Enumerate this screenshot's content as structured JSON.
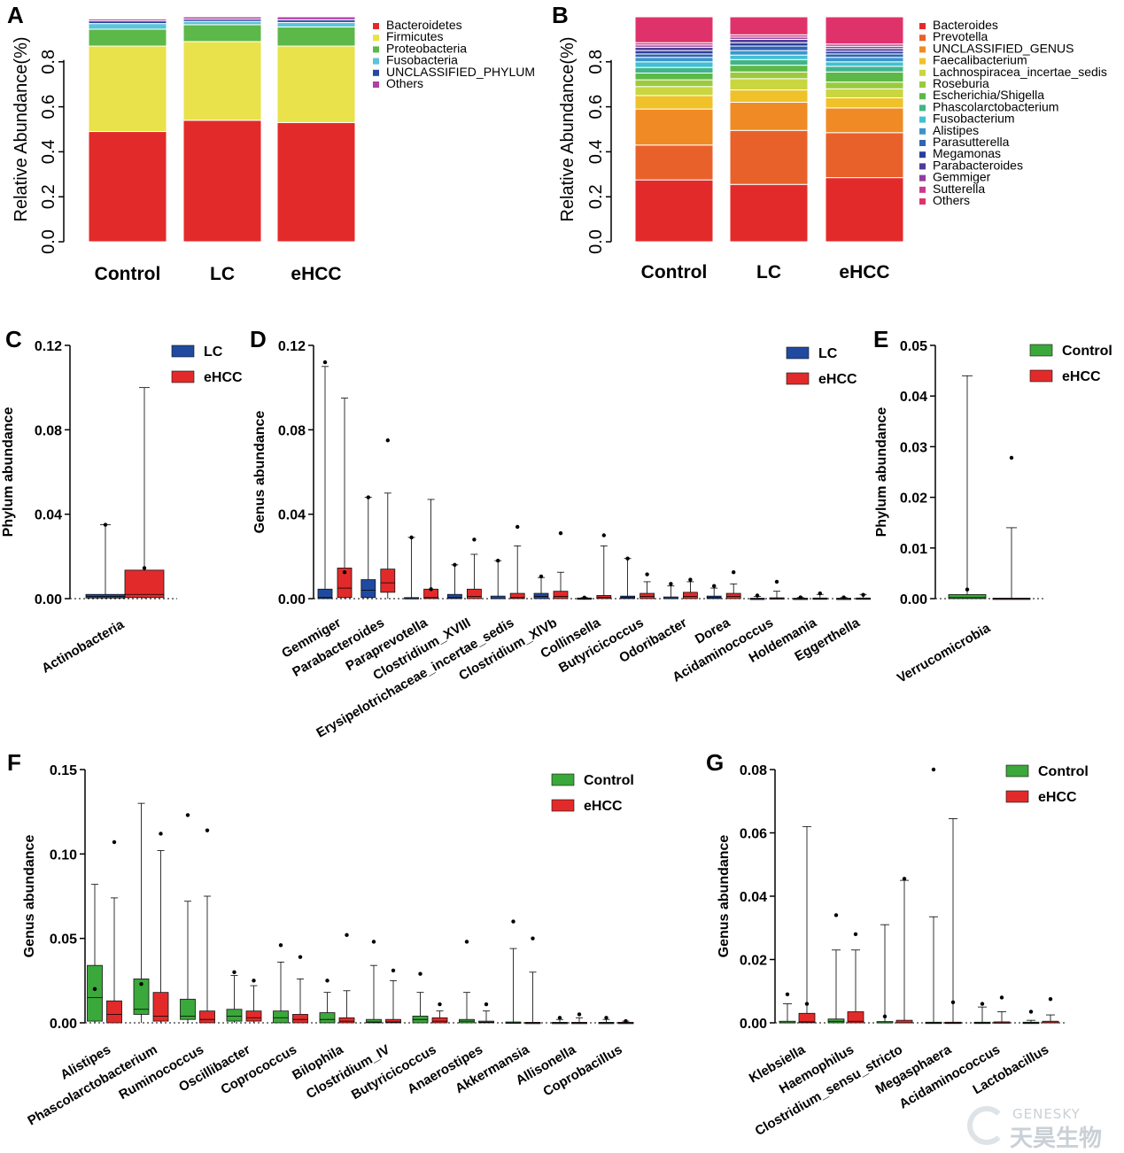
{
  "watermark": {
    "en": "GENESKY",
    "cn": "天昊生物"
  },
  "colors": {
    "lc": "#1f4aa0",
    "ehcc": "#e32a2a",
    "control": "#3aa83a",
    "phylum": [
      "#e32a2a",
      "#e9e24a",
      "#5cb848",
      "#5bc4d8",
      "#2747a0",
      "#b23fa6"
    ],
    "genus": [
      "#e32a2a",
      "#e8612b",
      "#f08a24",
      "#efc22a",
      "#c9d63f",
      "#9bcb3c",
      "#5cb848",
      "#41b58a",
      "#43bfd3",
      "#3b95cc",
      "#2f64b2",
      "#2a3f98",
      "#4d3c9a",
      "#8f3da0",
      "#c93a8e",
      "#e0326a"
    ]
  },
  "chart_data": [
    {
      "panel": "A",
      "type": "bar",
      "stacked": true,
      "ylabel": "Relative Abundance(%)",
      "ylim": [
        0,
        1
      ],
      "yticks": [
        "0.0",
        "0.2",
        "0.4",
        "0.6",
        "0.8"
      ],
      "categories": [
        "Control",
        "LC",
        "eHCC"
      ],
      "series": [
        {
          "name": "Bacteroidetes",
          "values": [
            0.49,
            0.54,
            0.53
          ]
        },
        {
          "name": "Firmicutes",
          "values": [
            0.38,
            0.35,
            0.34
          ]
        },
        {
          "name": "Proteobacteria",
          "values": [
            0.075,
            0.075,
            0.085
          ]
        },
        {
          "name": "Fusobacteria",
          "values": [
            0.025,
            0.015,
            0.02
          ]
        },
        {
          "name": "UNCLASSIFIED_PHYLUM",
          "values": [
            0.012,
            0.01,
            0.012
          ]
        },
        {
          "name": "Others",
          "values": [
            0.008,
            0.01,
            0.013
          ]
        }
      ]
    },
    {
      "panel": "B",
      "type": "bar",
      "stacked": true,
      "ylabel": "Relative Abundance(%)",
      "ylim": [
        0,
        1
      ],
      "yticks": [
        "0.0",
        "0.2",
        "0.4",
        "0.6",
        "0.8"
      ],
      "categories": [
        "Control",
        "LC",
        "eHCC"
      ],
      "series": [
        {
          "name": "Bacteroides",
          "values": [
            0.275,
            0.255,
            0.285
          ]
        },
        {
          "name": "Prevotella",
          "values": [
            0.155,
            0.24,
            0.2
          ]
        },
        {
          "name": "UNCLASSIFIED_GENUS",
          "values": [
            0.16,
            0.125,
            0.11
          ]
        },
        {
          "name": "Faecalibacterium",
          "values": [
            0.06,
            0.055,
            0.045
          ]
        },
        {
          "name": "Lachnospiracea_incertae_sedis",
          "values": [
            0.04,
            0.05,
            0.04
          ]
        },
        {
          "name": "Roseburia",
          "values": [
            0.03,
            0.03,
            0.03
          ]
        },
        {
          "name": "Escherichia/Shigella",
          "values": [
            0.03,
            0.03,
            0.045
          ]
        },
        {
          "name": "Phascolarctobacterium",
          "values": [
            0.025,
            0.025,
            0.025
          ]
        },
        {
          "name": "Fusobacterium",
          "values": [
            0.025,
            0.02,
            0.02
          ]
        },
        {
          "name": "Alistipes",
          "values": [
            0.02,
            0.02,
            0.02
          ]
        },
        {
          "name": "Parasutterella",
          "values": [
            0.015,
            0.02,
            0.015
          ]
        },
        {
          "name": "Megamonas",
          "values": [
            0.015,
            0.015,
            0.012
          ]
        },
        {
          "name": "Parabacteroides",
          "values": [
            0.015,
            0.015,
            0.012
          ]
        },
        {
          "name": "Gemmiger",
          "values": [
            0.01,
            0.01,
            0.01
          ]
        },
        {
          "name": "Sutterella",
          "values": [
            0.01,
            0.01,
            0.01
          ]
        },
        {
          "name": "Others",
          "values": [
            0.115,
            0.08,
            0.121
          ]
        }
      ]
    },
    {
      "panel": "C",
      "type": "box",
      "ylabel": "Phylum abundance",
      "ylim": [
        0,
        0.12
      ],
      "yticks": [
        "0.00",
        "0.04",
        "0.08",
        "0.12"
      ],
      "legend": [
        "LC",
        "eHCC"
      ],
      "categories": [
        "Actinobacteria"
      ],
      "groups": [
        [
          {
            "q1": 0.0003,
            "med": 0.001,
            "q3": 0.002,
            "wmax": 0.035,
            "mean": 0.035
          },
          {
            "q1": 0.0005,
            "med": 0.002,
            "q3": 0.0135,
            "wmax": 0.1,
            "mean": 0.0145
          }
        ]
      ]
    },
    {
      "panel": "D",
      "type": "box",
      "ylabel": "Genus abundance",
      "ylim": [
        0,
        0.12
      ],
      "yticks": [
        "0.00",
        "0.04",
        "0.08",
        "0.12"
      ],
      "legend": [
        "LC",
        "eHCC"
      ],
      "categories": [
        "Gemmiger",
        "Parabacteroides",
        "Paraprevotella",
        "Clostridium_XVIII",
        "Erysipelotrichaceae_incertae_sedis",
        "Clostridium_XlVb",
        "Collinsella",
        "Butyricicoccus",
        "Odoribacter",
        "Dorea",
        "Acidaminococcus",
        "Holdemania",
        "Eggerthella"
      ],
      "groups": [
        [
          {
            "q1": 0,
            "med": 0.0005,
            "q3": 0.0045,
            "wmax": 0.11,
            "mean": 0.112
          },
          {
            "q1": 0.0005,
            "med": 0.005,
            "q3": 0.0145,
            "wmax": 0.095,
            "mean": 0.0125
          }
        ],
        [
          {
            "q1": 0.0005,
            "med": 0.004,
            "q3": 0.009,
            "wmax": 0.048,
            "mean": 0.048
          },
          {
            "q1": 0.003,
            "med": 0.0075,
            "q3": 0.014,
            "wmax": 0.05,
            "mean": 0.075
          }
        ],
        [
          {
            "q1": 0,
            "med": 0,
            "q3": 0.0005,
            "wmax": 0.029,
            "mean": 0.029
          },
          {
            "q1": 0,
            "med": 0.0005,
            "q3": 0.0045,
            "wmax": 0.047,
            "mean": 0.0045
          }
        ],
        [
          {
            "q1": 0,
            "med": 0.0005,
            "q3": 0.002,
            "wmax": 0.016,
            "mean": 0.016
          },
          {
            "q1": 0,
            "med": 0.001,
            "q3": 0.0045,
            "wmax": 0.021,
            "mean": 0.028
          }
        ],
        [
          {
            "q1": 0,
            "med": 0,
            "q3": 0.0012,
            "wmax": 0.018,
            "mean": 0.018
          },
          {
            "q1": 0,
            "med": 0.0005,
            "q3": 0.0025,
            "wmax": 0.025,
            "mean": 0.034
          }
        ],
        [
          {
            "q1": 0,
            "med": 0.001,
            "q3": 0.0025,
            "wmax": 0.01,
            "mean": 0.0105
          },
          {
            "q1": 0,
            "med": 0.001,
            "q3": 0.0035,
            "wmax": 0.0125,
            "mean": 0.031
          }
        ],
        [
          {
            "q1": 0,
            "med": 0,
            "q3": 0.0003,
            "wmax": 0.0005,
            "mean": 0.0005
          },
          {
            "q1": 0,
            "med": 0.0005,
            "q3": 0.0015,
            "wmax": 0.025,
            "mean": 0.03
          }
        ],
        [
          {
            "q1": 0,
            "med": 0.0005,
            "q3": 0.0012,
            "wmax": 0.019,
            "mean": 0.019
          },
          {
            "q1": 0,
            "med": 0.001,
            "q3": 0.0025,
            "wmax": 0.008,
            "mean": 0.0115
          }
        ],
        [
          {
            "q1": 0,
            "med": 0,
            "q3": 0.0008,
            "wmax": 0.006,
            "mean": 0.007
          },
          {
            "q1": 0,
            "med": 0.001,
            "q3": 0.003,
            "wmax": 0.008,
            "mean": 0.009
          }
        ],
        [
          {
            "q1": 0,
            "med": 0.0005,
            "q3": 0.0012,
            "wmax": 0.005,
            "mean": 0.006
          },
          {
            "q1": 0,
            "med": 0.001,
            "q3": 0.0025,
            "wmax": 0.007,
            "mean": 0.0125
          }
        ],
        [
          {
            "q1": 0,
            "med": 0,
            "q3": 0.0002,
            "wmax": 0.001,
            "mean": 0.0015
          },
          {
            "q1": 0,
            "med": 0,
            "q3": 0.0004,
            "wmax": 0.0035,
            "mean": 0.008
          }
        ],
        [
          {
            "q1": 0,
            "med": 0,
            "q3": 0.0002,
            "wmax": 0.0005,
            "mean": 0.0006
          },
          {
            "q1": 0,
            "med": 0,
            "q3": 0.0003,
            "wmax": 0.002,
            "mean": 0.0025
          }
        ],
        [
          {
            "q1": 0,
            "med": 0,
            "q3": 0.0002,
            "wmax": 0.0005,
            "mean": 0.0006
          },
          {
            "q1": 0,
            "med": 0,
            "q3": 0.0003,
            "wmax": 0.002,
            "mean": 0.0018
          }
        ]
      ]
    },
    {
      "panel": "E",
      "type": "box",
      "ylabel": "Phylum abundance",
      "ylim": [
        0,
        0.05
      ],
      "yticks": [
        "0.00",
        "0.01",
        "0.02",
        "0.03",
        "0.04",
        "0.05"
      ],
      "legend": [
        "Control",
        "eHCC"
      ],
      "categories": [
        "Verrucomicrobia"
      ],
      "groups": [
        [
          {
            "q1": 0,
            "med": 0.0002,
            "q3": 0.0008,
            "wmax": 0.044,
            "mean": 0.0018
          },
          {
            "q1": 0,
            "med": 0,
            "q3": 0.0001,
            "wmax": 0.014,
            "mean": 0.0278
          }
        ]
      ]
    },
    {
      "panel": "F",
      "type": "box",
      "ylabel": "Genus abundance",
      "ylim": [
        0,
        0.15
      ],
      "yticks": [
        "0.00",
        "0.05",
        "0.10",
        "0.15"
      ],
      "legend": [
        "Control",
        "eHCC"
      ],
      "categories": [
        "Alistipes",
        "Phascolarctobacterium",
        "Ruminococcus",
        "Oscillibacter",
        "Coprococcus",
        "Bilophila",
        "Clostridium_IV",
        "Butyricicoccus",
        "Anaerostipes",
        "Akkermansia",
        "Allisonella",
        "Coprobacillus"
      ],
      "groups": [
        [
          {
            "q1": 0.001,
            "med": 0.015,
            "q3": 0.034,
            "wmax": 0.082,
            "mean": 0.02
          },
          {
            "q1": 0,
            "med": 0.005,
            "q3": 0.013,
            "wmax": 0.074,
            "mean": 0.107
          }
        ],
        [
          {
            "q1": 0.005,
            "med": 0.008,
            "q3": 0.026,
            "wmax": 0.13,
            "mean": 0.023
          },
          {
            "q1": 0.001,
            "med": 0.004,
            "q3": 0.018,
            "wmax": 0.102,
            "mean": 0.112
          }
        ],
        [
          {
            "q1": 0.002,
            "med": 0.004,
            "q3": 0.014,
            "wmax": 0.072,
            "mean": 0.123
          },
          {
            "q1": 0,
            "med": 0.002,
            "q3": 0.007,
            "wmax": 0.075,
            "mean": 0.114
          }
        ],
        [
          {
            "q1": 0.001,
            "med": 0.004,
            "q3": 0.008,
            "wmax": 0.028,
            "mean": 0.03
          },
          {
            "q1": 0.001,
            "med": 0.003,
            "q3": 0.007,
            "wmax": 0.022,
            "mean": 0.025
          }
        ],
        [
          {
            "q1": 0,
            "med": 0.003,
            "q3": 0.007,
            "wmax": 0.036,
            "mean": 0.046
          },
          {
            "q1": 0,
            "med": 0.002,
            "q3": 0.005,
            "wmax": 0.026,
            "mean": 0.039
          }
        ],
        [
          {
            "q1": 0,
            "med": 0.002,
            "q3": 0.006,
            "wmax": 0.018,
            "mean": 0.025
          },
          {
            "q1": 0,
            "med": 0.001,
            "q3": 0.003,
            "wmax": 0.019,
            "mean": 0.052
          }
        ],
        [
          {
            "q1": 0,
            "med": 0.0005,
            "q3": 0.002,
            "wmax": 0.034,
            "mean": 0.048
          },
          {
            "q1": 0,
            "med": 0.0005,
            "q3": 0.002,
            "wmax": 0.025,
            "mean": 0.031
          }
        ],
        [
          {
            "q1": 0,
            "med": 0.002,
            "q3": 0.004,
            "wmax": 0.018,
            "mean": 0.029
          },
          {
            "q1": 0,
            "med": 0.001,
            "q3": 0.003,
            "wmax": 0.007,
            "mean": 0.011
          }
        ],
        [
          {
            "q1": 0,
            "med": 0.001,
            "q3": 0.002,
            "wmax": 0.018,
            "mean": 0.048
          },
          {
            "q1": 0,
            "med": 0.0003,
            "q3": 0.001,
            "wmax": 0.007,
            "mean": 0.011
          }
        ],
        [
          {
            "q1": 0,
            "med": 0,
            "q3": 0.0005,
            "wmax": 0.044,
            "mean": 0.06
          },
          {
            "q1": 0,
            "med": 0,
            "q3": 0.0003,
            "wmax": 0.03,
            "mean": 0.05
          }
        ],
        [
          {
            "q1": 0,
            "med": 0,
            "q3": 0.0003,
            "wmax": 0.002,
            "mean": 0.003
          },
          {
            "q1": 0,
            "med": 0,
            "q3": 0.0003,
            "wmax": 0.003,
            "mean": 0.005
          }
        ],
        [
          {
            "q1": 0,
            "med": 0,
            "q3": 0.0003,
            "wmax": 0.002,
            "mean": 0.003
          },
          {
            "q1": 0,
            "med": 0,
            "q3": 0.0003,
            "wmax": 0.001,
            "mean": 0.001
          }
        ]
      ]
    },
    {
      "panel": "G",
      "type": "box",
      "ylabel": "Genus abundance",
      "ylim": [
        0,
        0.08
      ],
      "yticks": [
        "0.00",
        "0.02",
        "0.04",
        "0.06",
        "0.08"
      ],
      "legend": [
        "Control",
        "eHCC"
      ],
      "categories": [
        "Klebsiella",
        "Haemophilus",
        "Clostridium_sensu_stricto",
        "Megasphaera",
        "Acidaminococcus",
        "Lactobacillus"
      ],
      "groups": [
        [
          {
            "q1": 0,
            "med": 0,
            "q3": 0.0005,
            "wmax": 0.006,
            "mean": 0.009
          },
          {
            "q1": 0,
            "med": 0.0003,
            "q3": 0.003,
            "wmax": 0.062,
            "mean": 0.006
          }
        ],
        [
          {
            "q1": 0,
            "med": 0.0005,
            "q3": 0.0012,
            "wmax": 0.023,
            "mean": 0.034
          },
          {
            "q1": 0,
            "med": 0.0005,
            "q3": 0.0035,
            "wmax": 0.023,
            "mean": 0.028
          }
        ],
        [
          {
            "q1": 0,
            "med": 0,
            "q3": 0.0004,
            "wmax": 0.031,
            "mean": 0.002
          },
          {
            "q1": 0,
            "med": 0,
            "q3": 0.0008,
            "wmax": 0.045,
            "mean": 0.0455
          }
        ],
        [
          {
            "q1": 0,
            "med": 0,
            "q3": 0.0002,
            "wmax": 0.0335,
            "mean": 0.08
          },
          {
            "q1": 0,
            "med": 0,
            "q3": 0.0002,
            "wmax": 0.0645,
            "mean": 0.0065
          }
        ],
        [
          {
            "q1": 0,
            "med": 0,
            "q3": 0.0002,
            "wmax": 0.005,
            "mean": 0.006
          },
          {
            "q1": 0,
            "med": 0,
            "q3": 0.0003,
            "wmax": 0.0035,
            "mean": 0.008
          }
        ],
        [
          {
            "q1": 0,
            "med": 0,
            "q3": 0.0002,
            "wmax": 0.0008,
            "mean": 0.0035
          },
          {
            "q1": 0,
            "med": 0,
            "q3": 0.0005,
            "wmax": 0.0025,
            "mean": 0.0075
          }
        ]
      ]
    }
  ]
}
